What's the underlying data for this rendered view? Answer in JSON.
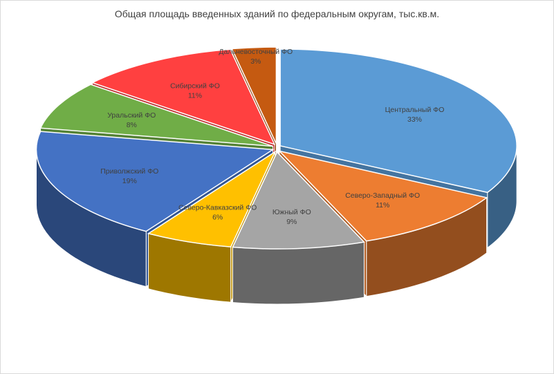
{
  "chart_data": {
    "type": "pie",
    "title": "Общая площадь введенных зданий по федеральным округам, тыс.кв.м.",
    "style": "3d-exploded",
    "legend": "none",
    "categories": [
      "Центральный ФО",
      "Северо-Западный ФО",
      "Южный ФО",
      "Северо-Кавказский ФО",
      "Приволжский ФО",
      "Уральский ФО",
      "Сибирский ФО",
      "Дальневосточный ФО"
    ],
    "values": [
      33,
      11,
      9,
      6,
      19,
      8,
      11,
      3
    ],
    "value_labels": [
      "33%",
      "11%",
      "9%",
      "6%",
      "19%",
      "8%",
      "11%",
      "3%"
    ],
    "colors": [
      "#5b9bd5",
      "#ed7d31",
      "#a5a5a5",
      "#ffc000",
      "#4472c4",
      "#70ad47",
      "#ff4040",
      "#c55a11"
    ]
  }
}
